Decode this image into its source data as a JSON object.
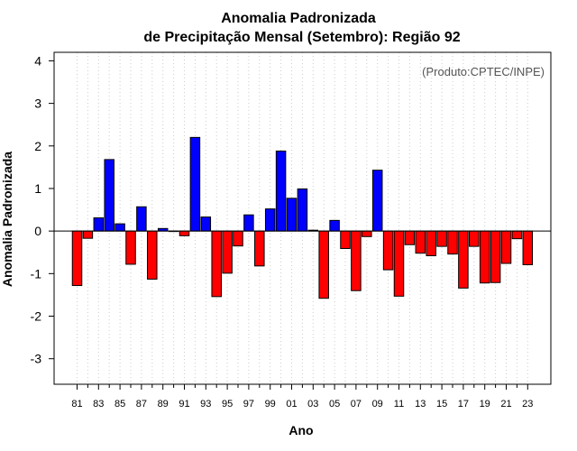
{
  "chart_data": {
    "type": "bar",
    "title": "Anomalia Padronizada",
    "subtitle": "de Precipitação Mensal (Setembro): Região 92",
    "xlabel": "Ano",
    "ylabel": "Anomalia Padronizada",
    "credit": "(Produto:CPTEC/INPE)",
    "ylim": [
      -3.6,
      4.2
    ],
    "yticks": [
      -3,
      -2,
      -1,
      0,
      1,
      2,
      3,
      4
    ],
    "ytick_labels": [
      "-3",
      "-2",
      "-1",
      "0",
      "1",
      "2",
      "3",
      "4"
    ],
    "xtick_labels": [
      "81",
      "83",
      "85",
      "87",
      "89",
      "91",
      "93",
      "95",
      "97",
      "99",
      "01",
      "03",
      "05",
      "07",
      "09",
      "11",
      "13",
      "15",
      "17",
      "19",
      "21",
      "23"
    ],
    "grid": true,
    "positive_color": "#0000ff",
    "negative_color": "#ff0000",
    "categories": [
      "1981",
      "1982",
      "1983",
      "1984",
      "1985",
      "1986",
      "1987",
      "1988",
      "1989",
      "1990",
      "1991",
      "1992",
      "1993",
      "1994",
      "1995",
      "1996",
      "1997",
      "1998",
      "1999",
      "2000",
      "2001",
      "2002",
      "2003",
      "2004",
      "2005",
      "2006",
      "2007",
      "2008",
      "2009",
      "2010",
      "2011",
      "2012",
      "2013",
      "2014",
      "2015",
      "2016",
      "2017",
      "2018",
      "2019",
      "2020",
      "2021",
      "2022",
      "2023"
    ],
    "values": [
      -1.28,
      -0.17,
      0.31,
      1.68,
      0.17,
      -0.78,
      0.57,
      -1.13,
      0.06,
      0.0,
      -0.11,
      2.2,
      0.33,
      -1.54,
      -0.99,
      -0.35,
      0.38,
      -0.82,
      0.52,
      1.88,
      0.77,
      0.99,
      0.02,
      -1.58,
      0.25,
      -0.41,
      -1.4,
      -0.13,
      1.43,
      -0.91,
      -1.53,
      -0.32,
      -0.52,
      -0.58,
      -0.36,
      -0.54,
      -1.34,
      -0.36,
      -1.22,
      -1.21,
      -0.76,
      -0.18,
      -0.79
    ]
  }
}
